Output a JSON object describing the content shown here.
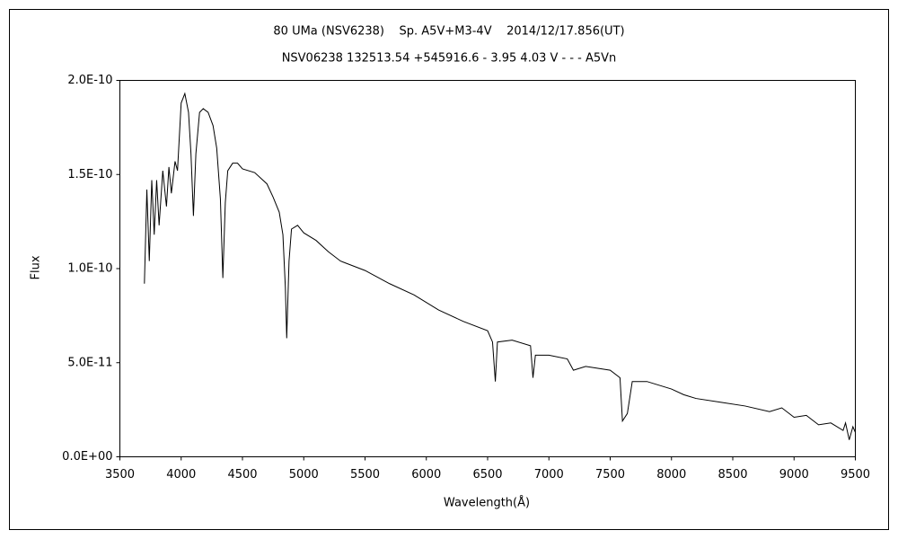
{
  "chart_data": {
    "type": "line",
    "title": "80 UMa (NSV6238)    Sp. A5V+M3-4V    2014/12/17.856(UT)",
    "subtitle": "NSV06238 132513.54 +545916.6 - 3.95 4.03 V - - - A5Vn",
    "x_label": "Wavelength(Å)",
    "y_label": "Flux",
    "color": "#000000",
    "grid": false,
    "x": [
      3700,
      3720,
      3740,
      3760,
      3780,
      3800,
      3820,
      3850,
      3880,
      3900,
      3920,
      3950,
      3970,
      4000,
      4030,
      4060,
      4080,
      4100,
      4120,
      4150,
      4180,
      4220,
      4260,
      4290,
      4320,
      4340,
      4360,
      4380,
      4420,
      4460,
      4500,
      4600,
      4700,
      4750,
      4800,
      4830,
      4850,
      4861,
      4880,
      4900,
      4950,
      5000,
      5100,
      5200,
      5300,
      5500,
      5700,
      5900,
      6100,
      6300,
      6500,
      6540,
      6563,
      6580,
      6700,
      6850,
      6870,
      6890,
      7000,
      7150,
      7200,
      7300,
      7500,
      7580,
      7600,
      7640,
      7680,
      7800,
      8000,
      8100,
      8200,
      8400,
      8600,
      8800,
      8900,
      9000,
      9100,
      9200,
      9300,
      9400,
      9420,
      9450,
      9480,
      9500
    ],
    "values": [
      9.2e-11,
      1.42e-10,
      1.04e-10,
      1.47e-10,
      1.18e-10,
      1.47e-10,
      1.23e-10,
      1.52e-10,
      1.33e-10,
      1.54e-10,
      1.4e-10,
      1.57e-10,
      1.52e-10,
      1.88e-10,
      1.93e-10,
      1.83e-10,
      1.61e-10,
      1.28e-10,
      1.61e-10,
      1.83e-10,
      1.85e-10,
      1.83e-10,
      1.76e-10,
      1.64e-10,
      1.37e-10,
      9.5e-11,
      1.35e-10,
      1.52e-10,
      1.56e-10,
      1.56e-10,
      1.53e-10,
      1.51e-10,
      1.45e-10,
      1.38e-10,
      1.3e-10,
      1.18e-10,
      9e-11,
      6.3e-11,
      1.04e-10,
      1.21e-10,
      1.23e-10,
      1.19e-10,
      1.15e-10,
      1.09e-10,
      1.04e-10,
      9.9e-11,
      9.2e-11,
      8.6e-11,
      7.8e-11,
      7.2e-11,
      6.7e-11,
      6.1e-11,
      4e-11,
      6.1e-11,
      6.2e-11,
      5.9e-11,
      4.2e-11,
      5.4e-11,
      5.4e-11,
      5.2e-11,
      4.6e-11,
      4.8e-11,
      4.6e-11,
      4.2e-11,
      1.9e-11,
      2.3e-11,
      4e-11,
      4e-11,
      3.6e-11,
      3.3e-11,
      3.1e-11,
      2.9e-11,
      2.7e-11,
      2.4e-11,
      2.6e-11,
      2.1e-11,
      2.2e-11,
      1.7e-11,
      1.8e-11,
      1.4e-11,
      1.8e-11,
      9e-12,
      1.6e-11,
      1.3e-11
    ],
    "xlim": [
      3500,
      9500
    ],
    "xticks": [
      3500,
      4000,
      4500,
      5000,
      5500,
      6000,
      6500,
      7000,
      7500,
      8000,
      8500,
      9000,
      9500
    ],
    "ylim": [
      0,
      2e-10
    ],
    "yticks": [
      {
        "value": 0,
        "label": "0.0E+00"
      },
      {
        "value": 5e-11,
        "label": "5.0E-11"
      },
      {
        "value": 1e-10,
        "label": "1.0E-10"
      },
      {
        "value": 1.5e-10,
        "label": "1.5E-10"
      },
      {
        "value": 2e-10,
        "label": "2.0E-10"
      }
    ]
  }
}
